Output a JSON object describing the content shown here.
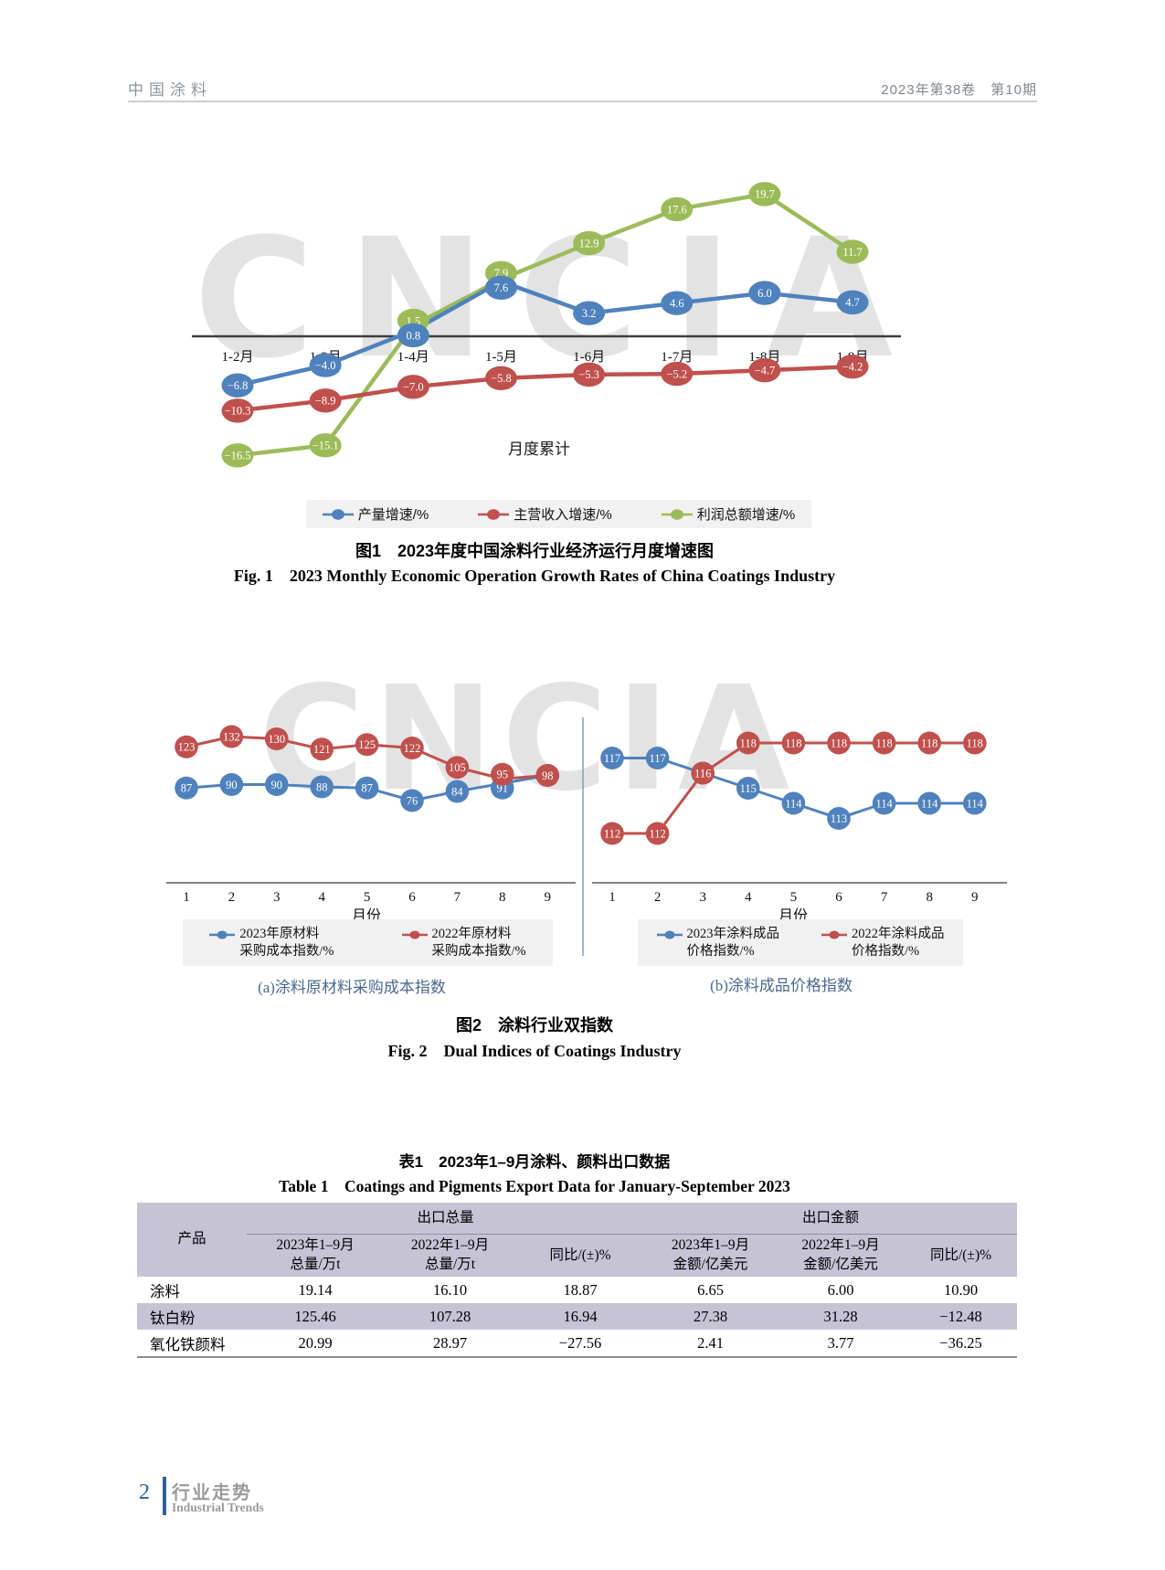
{
  "header": {
    "journal": "中国涂料",
    "issue": "2023年第38卷　第10期"
  },
  "watermark": "CNCIA",
  "figure1": {
    "annotation": "月度累计",
    "caption_zh": "图1　2023年度中国涂料行业经济运行月度增速图",
    "caption_en": "Fig. 1　2023 Monthly Economic Operation Growth Rates of China Coatings Industry",
    "chart_data": {
      "type": "line",
      "categories": [
        "1-2月",
        "1-3月",
        "1-4月",
        "1-5月",
        "1-6月",
        "1-7月",
        "1-8月",
        "1-9月"
      ],
      "series": [
        {
          "name": "产量增速/%",
          "color": "#4f81bd",
          "values": [
            -6.8,
            -4.0,
            0.8,
            7.6,
            3.2,
            4.6,
            6.0,
            4.7
          ]
        },
        {
          "name": "主营收入增速/%",
          "color": "#c0504d",
          "values": [
            -10.3,
            -8.9,
            -7.0,
            -5.8,
            -5.3,
            -5.2,
            -4.7,
            -4.2
          ]
        },
        {
          "name": "利润总额增速/%",
          "color": "#9bbb59",
          "values": [
            -16.5,
            -15.1,
            1.5,
            7.9,
            12.9,
            17.6,
            19.7,
            11.7
          ]
        }
      ],
      "ylim": [
        -20,
        24
      ],
      "zero_axis_line": true,
      "data_labels": true,
      "legend_position": "bottom"
    }
  },
  "figure2": {
    "xlabel": "月份",
    "caption_zh": "图2　涂料行业双指数",
    "caption_en": "Fig. 2　Dual Indices of Coatings Industry",
    "charts": [
      {
        "sub_caption": "(a)涂料原材料采购成本指数",
        "chart_data": {
          "type": "line",
          "x": [
            1,
            2,
            3,
            4,
            5,
            6,
            7,
            8,
            9
          ],
          "series": [
            {
              "name": "2023年原材料\n采购成本指数/%",
              "color": "#4f81bd",
              "values": [
                87,
                90,
                90,
                88,
                87,
                76,
                84,
                91,
                98
              ]
            },
            {
              "name": "2022年原材料\n采购成本指数/%",
              "color": "#c0504d",
              "values": [
                123,
                132,
                130,
                121,
                125,
                122,
                105,
                95,
                98
              ]
            }
          ],
          "data_labels": true,
          "legend_position": "bottom"
        }
      },
      {
        "sub_caption": "(b)涂料成品价格指数",
        "chart_data": {
          "type": "line",
          "x": [
            1,
            2,
            3,
            4,
            5,
            6,
            7,
            8,
            9
          ],
          "series": [
            {
              "name": "2023年涂料成品\n价格指数/%",
              "color": "#4f81bd",
              "values": [
                117,
                117,
                116,
                115,
                114,
                113,
                114,
                114,
                114
              ]
            },
            {
              "name": "2022年涂料成品\n价格指数/%",
              "color": "#c0504d",
              "values": [
                112,
                112,
                116,
                118,
                118,
                118,
                118,
                118,
                118
              ]
            }
          ],
          "data_labels": true,
          "legend_position": "bottom"
        }
      }
    ]
  },
  "table1": {
    "caption_zh": "表1　2023年1–9月涂料、颜料出口数据",
    "caption_en": "Table 1　Coatings and Pigments Export Data for January-September 2023",
    "col_product": "产品",
    "group_headers": [
      "出口总量",
      "出口金额"
    ],
    "sub_headers": [
      "2023年1–9月\n总量/万t",
      "2022年1–9月\n总量/万t",
      "同比/(±)%",
      "2023年1–9月\n金额/亿美元",
      "2022年1–9月\n金额/亿美元",
      "同比/(±)%"
    ],
    "rows": [
      {
        "product": "涂料",
        "cells": [
          "19.14",
          "16.10",
          "18.87",
          "6.65",
          "6.00",
          "10.90"
        ]
      },
      {
        "product": "钛白粉",
        "cells": [
          "125.46",
          "107.28",
          "16.94",
          "27.38",
          "31.28",
          "−12.48"
        ]
      },
      {
        "product": "氧化铁颜料",
        "cells": [
          "20.99",
          "28.97",
          "−27.56",
          "2.41",
          "3.77",
          "−36.25"
        ]
      }
    ]
  },
  "footer": {
    "page_number": "2",
    "section_zh": "行业走势",
    "section_en": "Industrial Trends"
  },
  "colors": {
    "series_blue": "#4f81bd",
    "series_red": "#c0504d",
    "series_green": "#9bbb59",
    "watermark": "#e3e3e3",
    "table_header_bg": "#c5c3d4",
    "legend_bg": "#f1f1f1",
    "subcaption_blue": "#4a688f",
    "accent_blue": "#2f5f93"
  }
}
